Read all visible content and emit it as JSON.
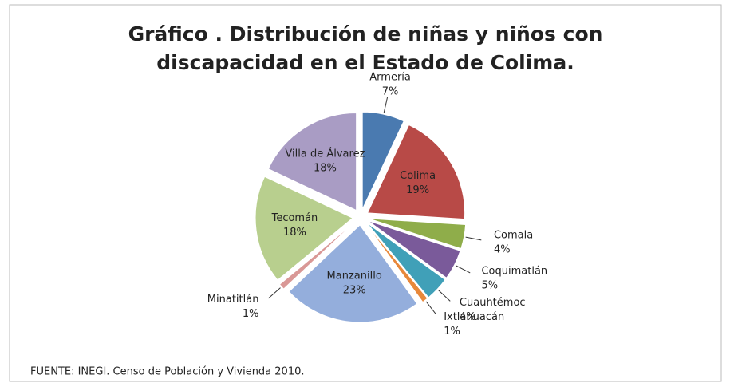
{
  "chart_data": {
    "type": "pie",
    "title": [
      "Gráfico . Distribución de niñas y niños con",
      "discapacidad en el Estado de Colima."
    ],
    "categories": [
      "Armería",
      "Colima",
      "Comala",
      "Coquimatlán",
      "Cuauhtémoc",
      "Ixtlahuacán",
      "Manzanillo",
      "Minatitlán",
      "Tecomán",
      "Villa de Álvarez"
    ],
    "values": [
      7,
      19,
      4,
      5,
      4,
      1,
      23,
      1,
      18,
      18
    ],
    "value_labels": [
      "7%",
      "19%",
      "4%",
      "5%",
      "4%",
      "1%",
      "23%",
      "1%",
      "18%",
      "18%"
    ],
    "colors": [
      "#4a7ab0",
      "#b84a47",
      "#8fad4a",
      "#7a5a9a",
      "#40a0b8",
      "#e8883a",
      "#94aedc",
      "#d99896",
      "#b8cf8e",
      "#a99cc4"
    ],
    "source": "FUENTE: INEGI. Censo de Población y Vivienda 2010."
  }
}
